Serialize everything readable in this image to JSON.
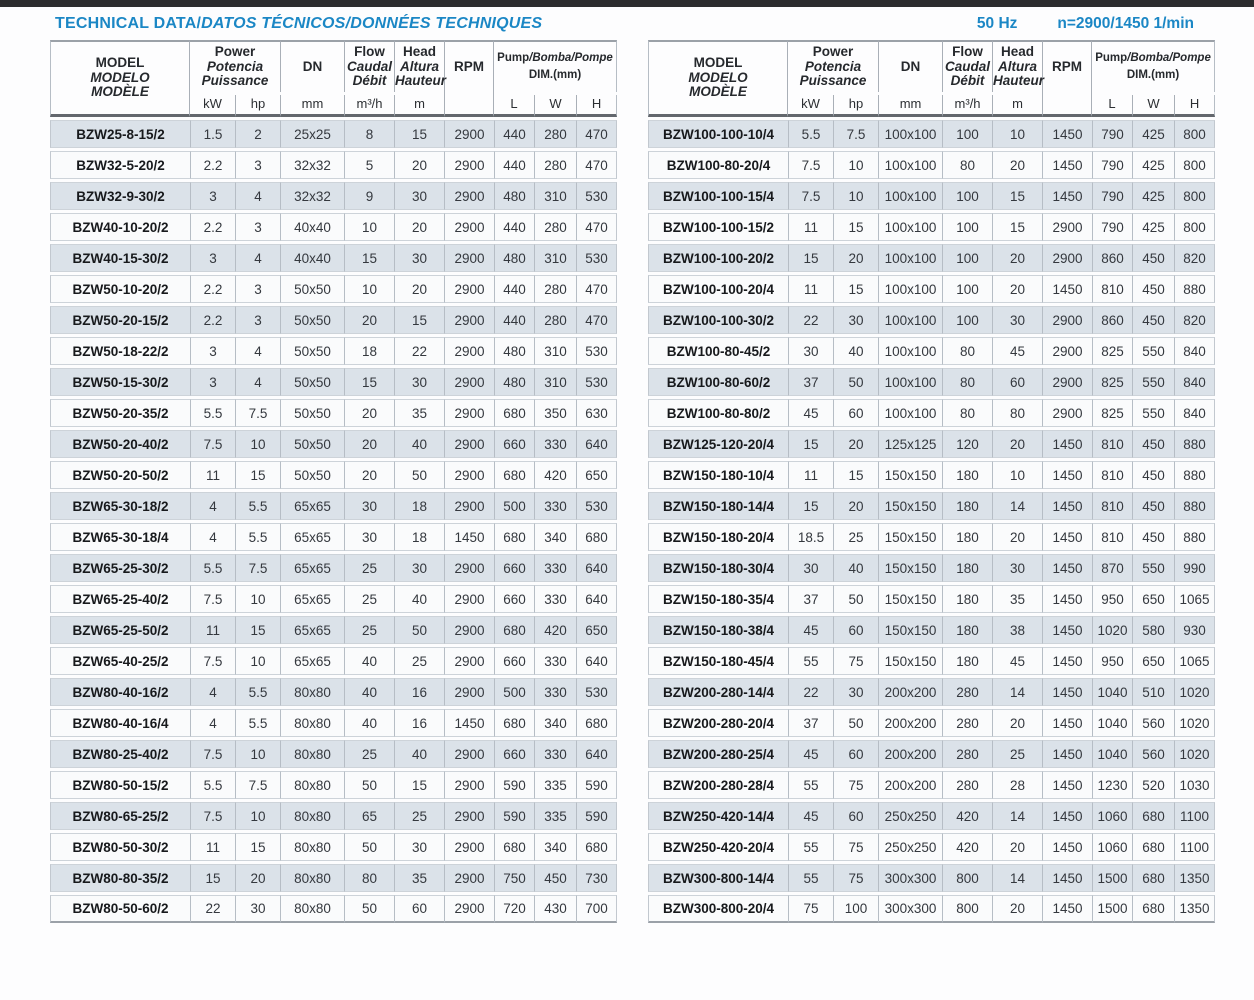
{
  "header": {
    "title_normal": "TECHNICAL DATA/",
    "title_italic": "DATOS TÉCNICOS/DONNÉES TECHNIQUES",
    "frequency": "50 Hz",
    "speed": "n=2900/1450 1/min"
  },
  "colors": {
    "accent": "#1b87c5",
    "row_shade": "#dbe2e9",
    "row_plain": "#fafbfc",
    "grid_line": "#b6bdc5",
    "header_rule": "#63676d"
  },
  "table_header": {
    "model": [
      "MODEL",
      "MODELO",
      "MODÈLE"
    ],
    "power": [
      "Power",
      "Potencia",
      "Puissance"
    ],
    "dn": "DN",
    "flow": [
      "Flow",
      "Caudal",
      "Débit"
    ],
    "head": [
      "Head",
      "Altura",
      "Hauteur"
    ],
    "rpm": "RPM",
    "pump_dim": {
      "upright": "Pump",
      "italic": "/Bomba/Pompe",
      "line2": "DIM.(mm)"
    },
    "units": {
      "kw": "kW",
      "hp": "hp",
      "mm": "mm",
      "flow": "m³/h",
      "head": "m",
      "l": "L",
      "w": "W",
      "h": "H"
    }
  },
  "left_table": {
    "rows": [
      [
        "BZW25-8-15/2",
        "1.5",
        "2",
        "25x25",
        "8",
        "15",
        "2900",
        "440",
        "280",
        "470"
      ],
      [
        "BZW32-5-20/2",
        "2.2",
        "3",
        "32x32",
        "5",
        "20",
        "2900",
        "440",
        "280",
        "470"
      ],
      [
        "BZW32-9-30/2",
        "3",
        "4",
        "32x32",
        "9",
        "30",
        "2900",
        "480",
        "310",
        "530"
      ],
      [
        "BZW40-10-20/2",
        "2.2",
        "3",
        "40x40",
        "10",
        "20",
        "2900",
        "440",
        "280",
        "470"
      ],
      [
        "BZW40-15-30/2",
        "3",
        "4",
        "40x40",
        "15",
        "30",
        "2900",
        "480",
        "310",
        "530"
      ],
      [
        "BZW50-10-20/2",
        "2.2",
        "3",
        "50x50",
        "10",
        "20",
        "2900",
        "440",
        "280",
        "470"
      ],
      [
        "BZW50-20-15/2",
        "2.2",
        "3",
        "50x50",
        "20",
        "15",
        "2900",
        "440",
        "280",
        "470"
      ],
      [
        "BZW50-18-22/2",
        "3",
        "4",
        "50x50",
        "18",
        "22",
        "2900",
        "480",
        "310",
        "530"
      ],
      [
        "BZW50-15-30/2",
        "3",
        "4",
        "50x50",
        "15",
        "30",
        "2900",
        "480",
        "310",
        "530"
      ],
      [
        "BZW50-20-35/2",
        "5.5",
        "7.5",
        "50x50",
        "20",
        "35",
        "2900",
        "680",
        "350",
        "630"
      ],
      [
        "BZW50-20-40/2",
        "7.5",
        "10",
        "50x50",
        "20",
        "40",
        "2900",
        "660",
        "330",
        "640"
      ],
      [
        "BZW50-20-50/2",
        "11",
        "15",
        "50x50",
        "20",
        "50",
        "2900",
        "680",
        "420",
        "650"
      ],
      [
        "BZW65-30-18/2",
        "4",
        "5.5",
        "65x65",
        "30",
        "18",
        "2900",
        "500",
        "330",
        "530"
      ],
      [
        "BZW65-30-18/4",
        "4",
        "5.5",
        "65x65",
        "30",
        "18",
        "1450",
        "680",
        "340",
        "680"
      ],
      [
        "BZW65-25-30/2",
        "5.5",
        "7.5",
        "65x65",
        "25",
        "30",
        "2900",
        "660",
        "330",
        "640"
      ],
      [
        "BZW65-25-40/2",
        "7.5",
        "10",
        "65x65",
        "25",
        "40",
        "2900",
        "660",
        "330",
        "640"
      ],
      [
        "BZW65-25-50/2",
        "11",
        "15",
        "65x65",
        "25",
        "50",
        "2900",
        "680",
        "420",
        "650"
      ],
      [
        "BZW65-40-25/2",
        "7.5",
        "10",
        "65x65",
        "40",
        "25",
        "2900",
        "660",
        "330",
        "640"
      ],
      [
        "BZW80-40-16/2",
        "4",
        "5.5",
        "80x80",
        "40",
        "16",
        "2900",
        "500",
        "330",
        "530"
      ],
      [
        "BZW80-40-16/4",
        "4",
        "5.5",
        "80x80",
        "40",
        "16",
        "1450",
        "680",
        "340",
        "680"
      ],
      [
        "BZW80-25-40/2",
        "7.5",
        "10",
        "80x80",
        "25",
        "40",
        "2900",
        "660",
        "330",
        "640"
      ],
      [
        "BZW80-50-15/2",
        "5.5",
        "7.5",
        "80x80",
        "50",
        "15",
        "2900",
        "590",
        "335",
        "590"
      ],
      [
        "BZW80-65-25/2",
        "7.5",
        "10",
        "80x80",
        "65",
        "25",
        "2900",
        "590",
        "335",
        "590"
      ],
      [
        "BZW80-50-30/2",
        "11",
        "15",
        "80x80",
        "50",
        "30",
        "2900",
        "680",
        "340",
        "680"
      ],
      [
        "BZW80-80-35/2",
        "15",
        "20",
        "80x80",
        "80",
        "35",
        "2900",
        "750",
        "450",
        "730"
      ],
      [
        "BZW80-50-60/2",
        "22",
        "30",
        "80x80",
        "50",
        "60",
        "2900",
        "720",
        "430",
        "700"
      ]
    ]
  },
  "right_table": {
    "rows": [
      [
        "BZW100-100-10/4",
        "5.5",
        "7.5",
        "100x100",
        "100",
        "10",
        "1450",
        "790",
        "425",
        "800"
      ],
      [
        "BZW100-80-20/4",
        "7.5",
        "10",
        "100x100",
        "80",
        "20",
        "1450",
        "790",
        "425",
        "800"
      ],
      [
        "BZW100-100-15/4",
        "7.5",
        "10",
        "100x100",
        "100",
        "15",
        "1450",
        "790",
        "425",
        "800"
      ],
      [
        "BZW100-100-15/2",
        "11",
        "15",
        "100x100",
        "100",
        "15",
        "2900",
        "790",
        "425",
        "800"
      ],
      [
        "BZW100-100-20/2",
        "15",
        "20",
        "100x100",
        "100",
        "20",
        "2900",
        "860",
        "450",
        "820"
      ],
      [
        "BZW100-100-20/4",
        "11",
        "15",
        "100x100",
        "100",
        "20",
        "1450",
        "810",
        "450",
        "880"
      ],
      [
        "BZW100-100-30/2",
        "22",
        "30",
        "100x100",
        "100",
        "30",
        "2900",
        "860",
        "450",
        "820"
      ],
      [
        "BZW100-80-45/2",
        "30",
        "40",
        "100x100",
        "80",
        "45",
        "2900",
        "825",
        "550",
        "840"
      ],
      [
        "BZW100-80-60/2",
        "37",
        "50",
        "100x100",
        "80",
        "60",
        "2900",
        "825",
        "550",
        "840"
      ],
      [
        "BZW100-80-80/2",
        "45",
        "60",
        "100x100",
        "80",
        "80",
        "2900",
        "825",
        "550",
        "840"
      ],
      [
        "BZW125-120-20/4",
        "15",
        "20",
        "125x125",
        "120",
        "20",
        "1450",
        "810",
        "450",
        "880"
      ],
      [
        "BZW150-180-10/4",
        "11",
        "15",
        "150x150",
        "180",
        "10",
        "1450",
        "810",
        "450",
        "880"
      ],
      [
        "BZW150-180-14/4",
        "15",
        "20",
        "150x150",
        "180",
        "14",
        "1450",
        "810",
        "450",
        "880"
      ],
      [
        "BZW150-180-20/4",
        "18.5",
        "25",
        "150x150",
        "180",
        "20",
        "1450",
        "810",
        "450",
        "880"
      ],
      [
        "BZW150-180-30/4",
        "30",
        "40",
        "150x150",
        "180",
        "30",
        "1450",
        "870",
        "550",
        "990"
      ],
      [
        "BZW150-180-35/4",
        "37",
        "50",
        "150x150",
        "180",
        "35",
        "1450",
        "950",
        "650",
        "1065"
      ],
      [
        "BZW150-180-38/4",
        "45",
        "60",
        "150x150",
        "180",
        "38",
        "1450",
        "1020",
        "580",
        "930"
      ],
      [
        "BZW150-180-45/4",
        "55",
        "75",
        "150x150",
        "180",
        "45",
        "1450",
        "950",
        "650",
        "1065"
      ],
      [
        "BZW200-280-14/4",
        "22",
        "30",
        "200x200",
        "280",
        "14",
        "1450",
        "1040",
        "510",
        "1020"
      ],
      [
        "BZW200-280-20/4",
        "37",
        "50",
        "200x200",
        "280",
        "20",
        "1450",
        "1040",
        "560",
        "1020"
      ],
      [
        "BZW200-280-25/4",
        "45",
        "60",
        "200x200",
        "280",
        "25",
        "1450",
        "1040",
        "560",
        "1020"
      ],
      [
        "BZW200-280-28/4",
        "55",
        "75",
        "200x200",
        "280",
        "28",
        "1450",
        "1230",
        "520",
        "1030"
      ],
      [
        "BZW250-420-14/4",
        "45",
        "60",
        "250x250",
        "420",
        "14",
        "1450",
        "1060",
        "680",
        "1100"
      ],
      [
        "BZW250-420-20/4",
        "55",
        "75",
        "250x250",
        "420",
        "20",
        "1450",
        "1060",
        "680",
        "1100"
      ],
      [
        "BZW300-800-14/4",
        "55",
        "75",
        "300x300",
        "800",
        "14",
        "1450",
        "1500",
        "680",
        "1350"
      ],
      [
        "BZW300-800-20/4",
        "75",
        "100",
        "300x300",
        "800",
        "20",
        "1450",
        "1500",
        "680",
        "1350"
      ]
    ]
  }
}
